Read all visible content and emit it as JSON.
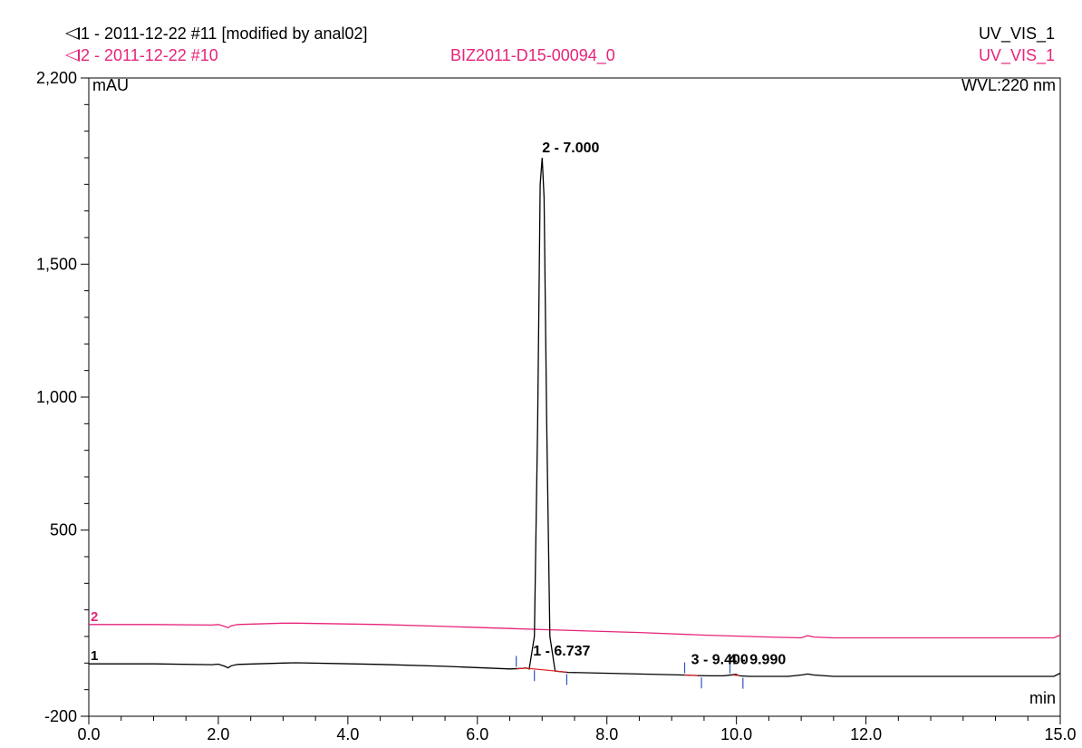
{
  "header": {
    "trace1_label": "1 - 2011-12-22 #11 [modified by anal02]",
    "trace1_channel": "UV_VIS_1",
    "trace2_label": "2 - 2011-12-22 #10",
    "trace2_sample": "BIZ2011-D15-00094_0",
    "trace2_channel": "UV_VIS_1",
    "wavelength": "WVL:220 nm"
  },
  "colors": {
    "trace1": "#000000",
    "trace2": "#e6247a",
    "baseline": "#e02020",
    "marker": "#3050c0"
  },
  "chart_data": {
    "type": "line",
    "xlabel": "min",
    "ylabel": "mAU",
    "xlim": [
      0,
      15
    ],
    "ylim": [
      -200,
      2200
    ],
    "x_ticks": [
      0,
      2,
      4,
      6,
      8,
      10,
      12,
      15
    ],
    "x_tick_labels": [
      "0.0",
      "2.0",
      "4.0",
      "6.0",
      "8.0",
      "10.0",
      "12.0",
      "15.0"
    ],
    "y_ticks": [
      -200,
      500,
      1000,
      1500,
      2200
    ],
    "y_tick_labels": [
      "-200",
      "500",
      "1,000",
      "1,500",
      "2,200"
    ],
    "series": [
      {
        "name": "1",
        "color": "#000000",
        "x": [
          0,
          1.0,
          1.9,
          2.0,
          2.1,
          2.15,
          2.2,
          2.3,
          3.0,
          3.2,
          4.5,
          5.5,
          6.5,
          6.7,
          6.74,
          6.8,
          6.88,
          6.93,
          6.97,
          7.0,
          7.03,
          7.07,
          7.12,
          7.2,
          7.4,
          8.5,
          9.2,
          9.4,
          9.6,
          9.8,
          9.95,
          9.99,
          10.05,
          10.2,
          10.8,
          11.0,
          11.1,
          11.2,
          11.5,
          12.5,
          14.0,
          14.9,
          15.0
        ],
        "y": [
          -3,
          -3,
          -6,
          -4,
          -12,
          -18,
          -10,
          -5,
          0,
          1,
          -5,
          -12,
          -22,
          -20,
          -18,
          -22,
          100,
          900,
          1800,
          1900,
          1750,
          900,
          100,
          -30,
          -35,
          -41,
          -45,
          -47,
          -48,
          -48,
          -44,
          -42,
          -48,
          -50,
          -50,
          -45,
          -41,
          -45,
          -50,
          -50,
          -50,
          -50,
          -38
        ]
      },
      {
        "name": "2",
        "color": "#e6247a",
        "x": [
          0,
          1.0,
          1.9,
          2.0,
          2.1,
          2.15,
          2.2,
          2.3,
          3.0,
          3.2,
          4.5,
          5.5,
          6.5,
          7.0,
          8.5,
          9.5,
          10.5,
          11.0,
          11.1,
          11.2,
          11.5,
          12.5,
          14.0,
          14.9,
          15.0
        ],
        "y": [
          145,
          145,
          143,
          145,
          138,
          133,
          140,
          145,
          150,
          150,
          145,
          138,
          130,
          126,
          115,
          105,
          98,
          95,
          103,
          98,
          95,
          95,
          95,
          95,
          105
        ]
      }
    ],
    "peaks": [
      {
        "label": "1 - 6.737"
      },
      {
        "label": "2 - 7.000"
      },
      {
        "label": "3 - 9.400"
      },
      {
        "label": "4 - 9.990"
      }
    ],
    "trace_markers": [
      "1",
      "2"
    ],
    "grid": false
  }
}
